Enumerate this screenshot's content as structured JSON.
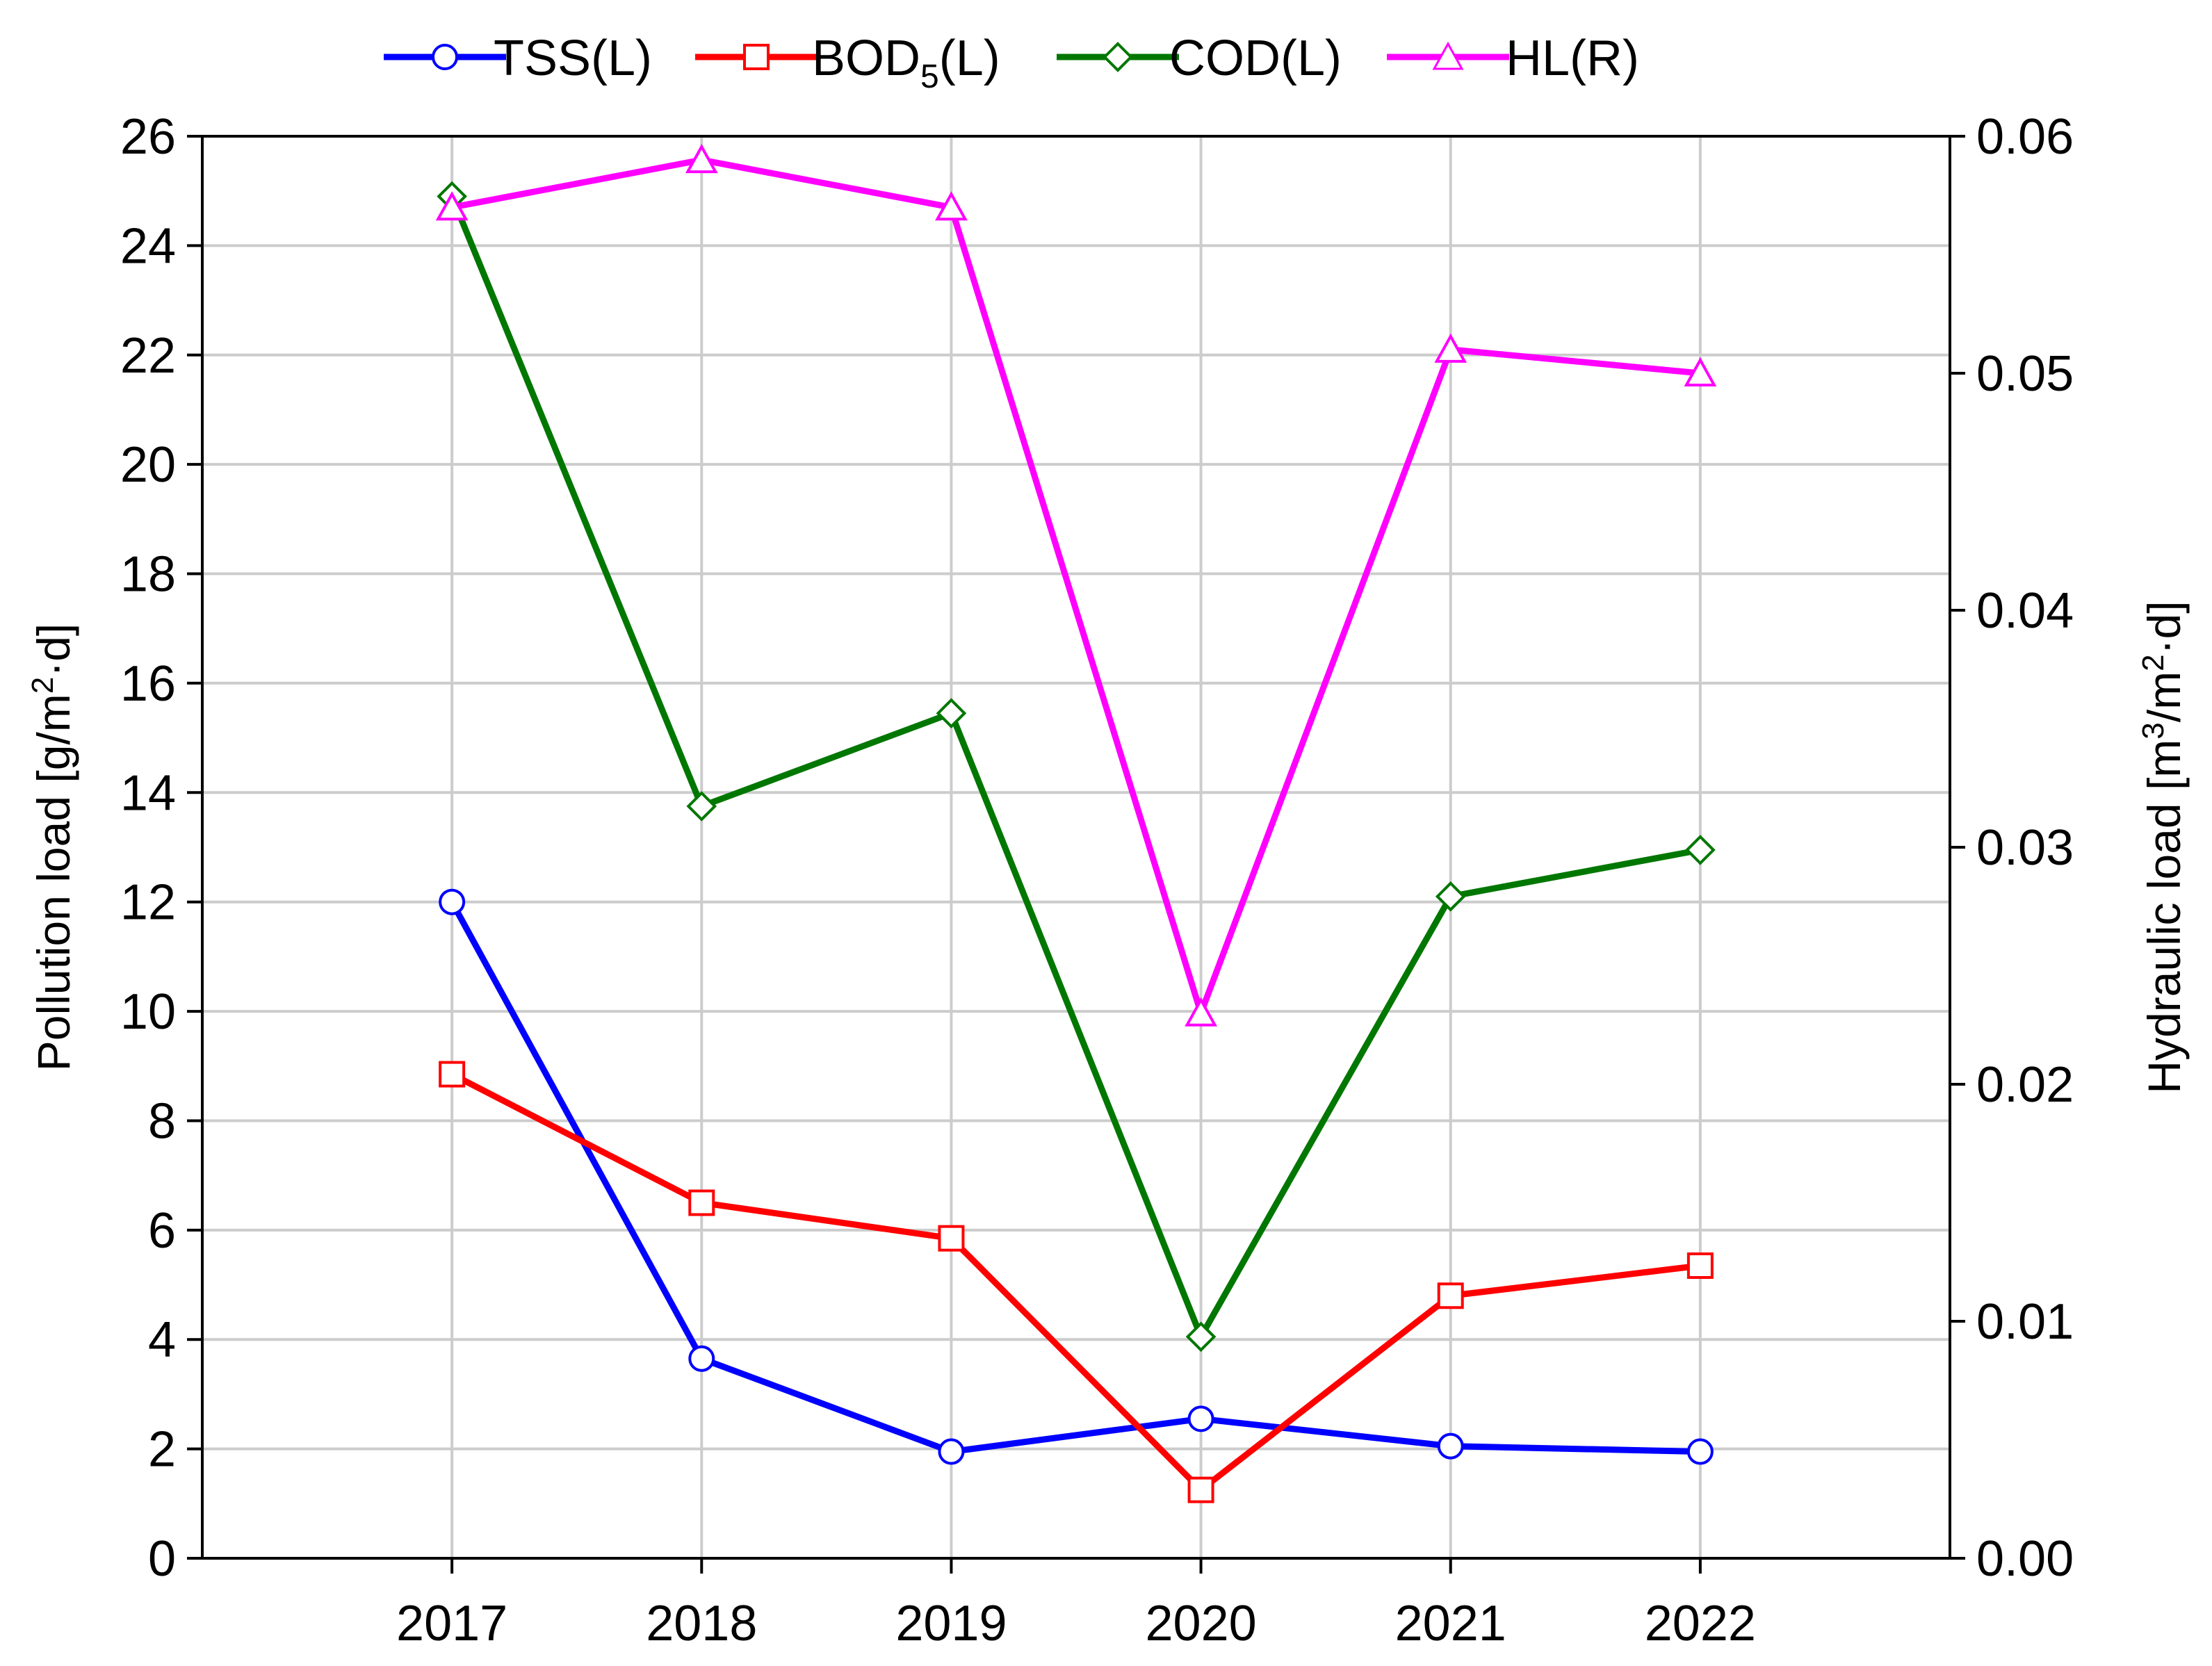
{
  "chart_data": {
    "type": "line",
    "x": [
      "2017",
      "2018",
      "2019",
      "2020",
      "2021",
      "2022"
    ],
    "yleft": {
      "label_main": "Pollution load [g/m",
      "label_sup": "2",
      "label_tail": "·d]",
      "lim": [
        0,
        26
      ],
      "ticks": [
        "0",
        "2",
        "4",
        "6",
        "8",
        "10",
        "12",
        "14",
        "16",
        "18",
        "20",
        "22",
        "24",
        "26"
      ]
    },
    "yright": {
      "label_main": "Hydraulic load [m",
      "label_sup1": "3",
      "label_mid": "/m",
      "label_sup2": "2",
      "label_tail": "·d]",
      "lim": [
        0,
        0.06
      ],
      "ticks": [
        "0.00",
        "0.01",
        "0.02",
        "0.03",
        "0.04",
        "0.05",
        "0.06"
      ]
    },
    "grid": true,
    "legend": "top",
    "series": [
      {
        "name_main": "TSS(L)",
        "name_sub": "",
        "name_tail": "",
        "axis": "left",
        "color": "#0000ff",
        "marker": "circle",
        "values": [
          12.0,
          3.65,
          1.95,
          2.55,
          2.05,
          1.95
        ]
      },
      {
        "name_main": "BOD",
        "name_sub": "5",
        "name_tail": "(L)",
        "axis": "left",
        "color": "#ff0000",
        "marker": "square",
        "values": [
          8.85,
          6.5,
          5.85,
          1.25,
          4.8,
          5.35
        ]
      },
      {
        "name_main": "COD(L)",
        "name_sub": "",
        "name_tail": "",
        "axis": "left",
        "color": "#007700",
        "marker": "diamond",
        "values": [
          24.9,
          13.75,
          15.45,
          4.05,
          12.1,
          12.95
        ]
      },
      {
        "name_main": "HL(R)",
        "name_sub": "",
        "name_tail": "",
        "axis": "right",
        "color": "#ff00ff",
        "marker": "triangle",
        "values": [
          0.057,
          0.059,
          0.057,
          0.023,
          0.051,
          0.05
        ]
      }
    ]
  }
}
